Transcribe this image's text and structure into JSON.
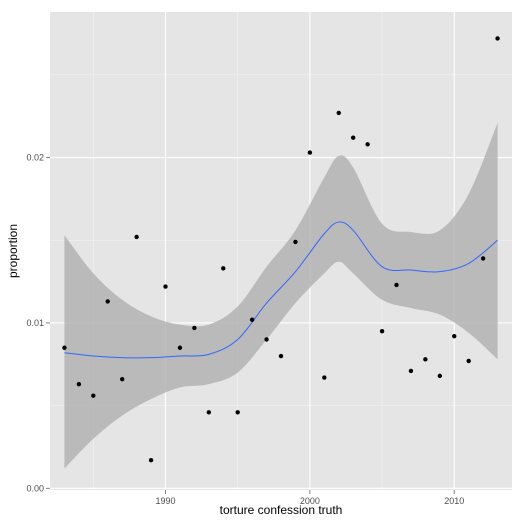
{
  "chart_data": {
    "type": "scatter",
    "title": "",
    "xlabel": "torture confession truth",
    "ylabel": "proportion",
    "xlim": [
      1982,
      2014
    ],
    "ylim": [
      -0.0001,
      0.0288
    ],
    "x_ticks": [
      1990,
      2000,
      2010
    ],
    "x_tick_labels": [
      "1990",
      "2000",
      "2010"
    ],
    "y_ticks": [
      0.0,
      0.01,
      0.02
    ],
    "y_tick_labels": [
      "0.00",
      "0.01",
      "0.02"
    ],
    "grid": true,
    "legend": "none",
    "colors": {
      "panel_background": "#e5e5e5",
      "grid_major": "#ffffff",
      "grid_minor": "#f2f2f2",
      "points": "#000000",
      "smooth_line": "#3366ff",
      "confidence_band": "#b3b3b3"
    },
    "points": [
      {
        "x": 1983,
        "y": 0.0085
      },
      {
        "x": 1984,
        "y": 0.0063
      },
      {
        "x": 1985,
        "y": 0.0056
      },
      {
        "x": 1986,
        "y": 0.0113
      },
      {
        "x": 1987,
        "y": 0.0066
      },
      {
        "x": 1988,
        "y": 0.0152
      },
      {
        "x": 1989,
        "y": 0.0017
      },
      {
        "x": 1990,
        "y": 0.0122
      },
      {
        "x": 1991,
        "y": 0.0085
      },
      {
        "x": 1992,
        "y": 0.0097
      },
      {
        "x": 1993,
        "y": 0.0046
      },
      {
        "x": 1994,
        "y": 0.0133
      },
      {
        "x": 1995,
        "y": 0.0046
      },
      {
        "x": 1996,
        "y": 0.0102
      },
      {
        "x": 1997,
        "y": 0.009
      },
      {
        "x": 1998,
        "y": 0.008
      },
      {
        "x": 1999,
        "y": 0.0149
      },
      {
        "x": 2000,
        "y": 0.0203
      },
      {
        "x": 2001,
        "y": 0.0067
      },
      {
        "x": 2002,
        "y": 0.0227
      },
      {
        "x": 2003,
        "y": 0.0212
      },
      {
        "x": 2004,
        "y": 0.0208
      },
      {
        "x": 2005,
        "y": 0.0095
      },
      {
        "x": 2006,
        "y": 0.0123
      },
      {
        "x": 2007,
        "y": 0.0071
      },
      {
        "x": 2008,
        "y": 0.0078
      },
      {
        "x": 2009,
        "y": 0.0068
      },
      {
        "x": 2010,
        "y": 0.0092
      },
      {
        "x": 2011,
        "y": 0.0077
      },
      {
        "x": 2012,
        "y": 0.0139
      },
      {
        "x": 2013,
        "y": 0.0272
      }
    ],
    "smooth": {
      "x": [
        1983,
        1985,
        1987,
        1989,
        1991,
        1993,
        1995,
        1997,
        1999,
        2001,
        2002,
        2003,
        2005,
        2007,
        2009,
        2011,
        2013
      ],
      "y": [
        0.0082,
        0.008,
        0.0079,
        0.0079,
        0.008,
        0.0081,
        0.009,
        0.0112,
        0.0131,
        0.0154,
        0.0161,
        0.0156,
        0.0134,
        0.0132,
        0.0131,
        0.0136,
        0.015
      ],
      "lower": [
        0.0012,
        0.003,
        0.0044,
        0.0054,
        0.0061,
        0.0063,
        0.007,
        0.009,
        0.0112,
        0.013,
        0.0137,
        0.013,
        0.0114,
        0.0109,
        0.0105,
        0.0094,
        0.0078
      ],
      "upper": [
        0.0153,
        0.013,
        0.0114,
        0.0104,
        0.0099,
        0.0099,
        0.011,
        0.0134,
        0.0156,
        0.0188,
        0.0201,
        0.0194,
        0.016,
        0.0155,
        0.0156,
        0.0178,
        0.0221
      ]
    }
  }
}
